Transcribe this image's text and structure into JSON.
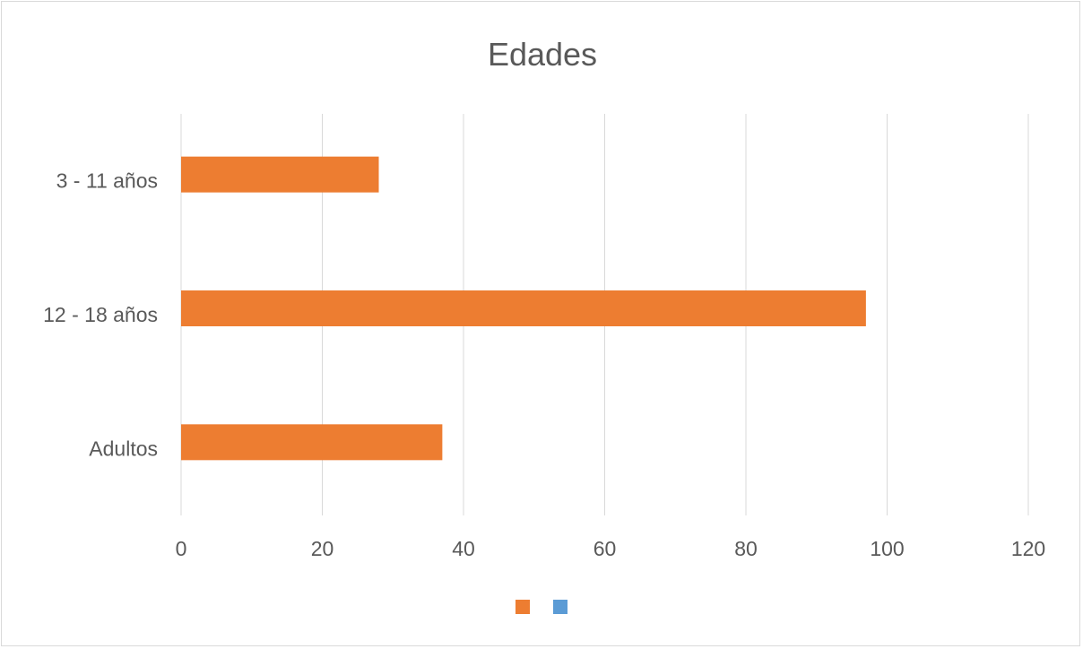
{
  "chart_data": {
    "type": "bar",
    "orientation": "horizontal",
    "title": "Edades",
    "categories": [
      "3 - 11 años",
      "12 - 18 años",
      "Adultos"
    ],
    "series": [
      {
        "values": [
          28,
          97,
          37
        ],
        "color": "#ED7D31"
      },
      {
        "values": [
          0,
          0,
          0
        ],
        "color": "#5B9BD5"
      }
    ],
    "xlim": [
      0,
      120
    ],
    "xticks": [
      "0",
      "20",
      "40",
      "60",
      "80",
      "100",
      "120"
    ],
    "grid": true,
    "legend_position": "bottom"
  }
}
